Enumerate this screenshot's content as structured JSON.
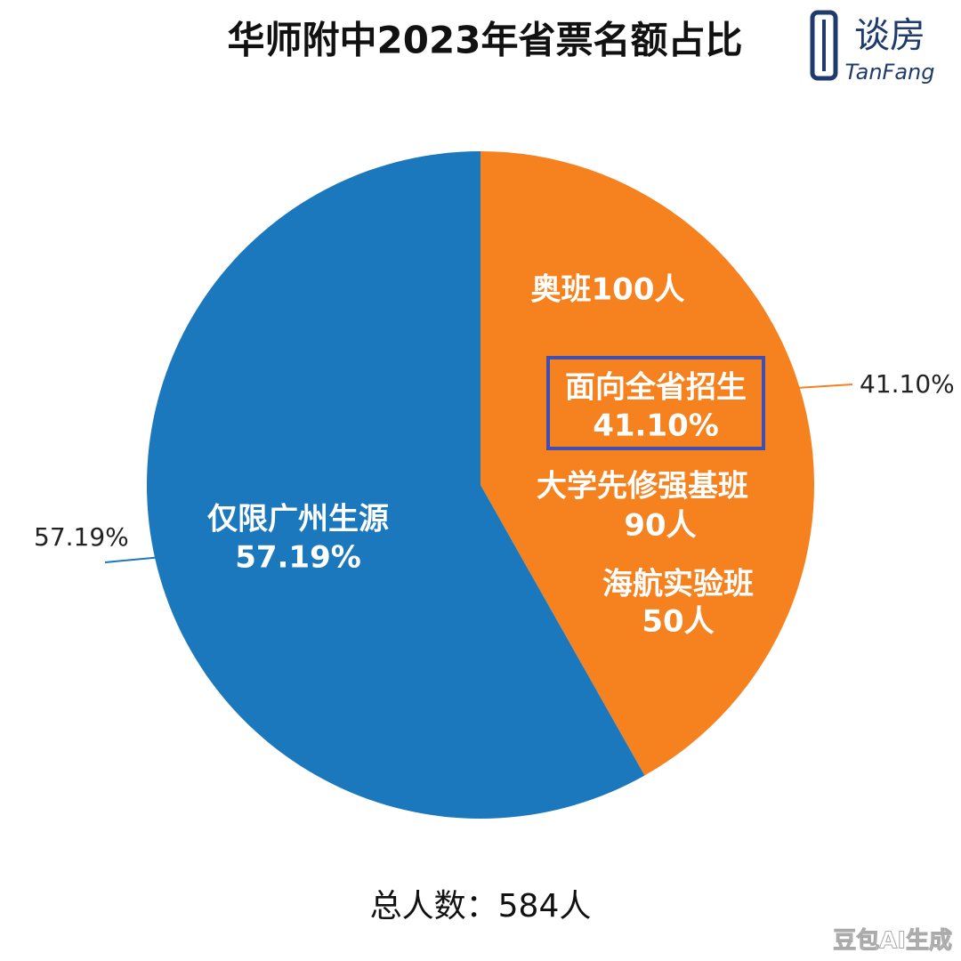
{
  "chart_data": {
    "type": "pie",
    "title": "华师附中2023年省票名额占比",
    "categories": [
      "面向全省招生",
      "仅限广州生源"
    ],
    "values": [
      41.1,
      57.19
    ],
    "value_labels": [
      "41.10%",
      "57.19%"
    ],
    "colors": [
      "#f5821f",
      "#1c78bd"
    ],
    "annotations": [
      "奥班100人",
      "大学先修强基班",
      "90人",
      "海航实验班",
      "50人"
    ],
    "footer": "总人数：584人"
  },
  "logo": {
    "name": "谈房",
    "subtitle": "TanFang"
  },
  "watermark": "豆包AI生成"
}
